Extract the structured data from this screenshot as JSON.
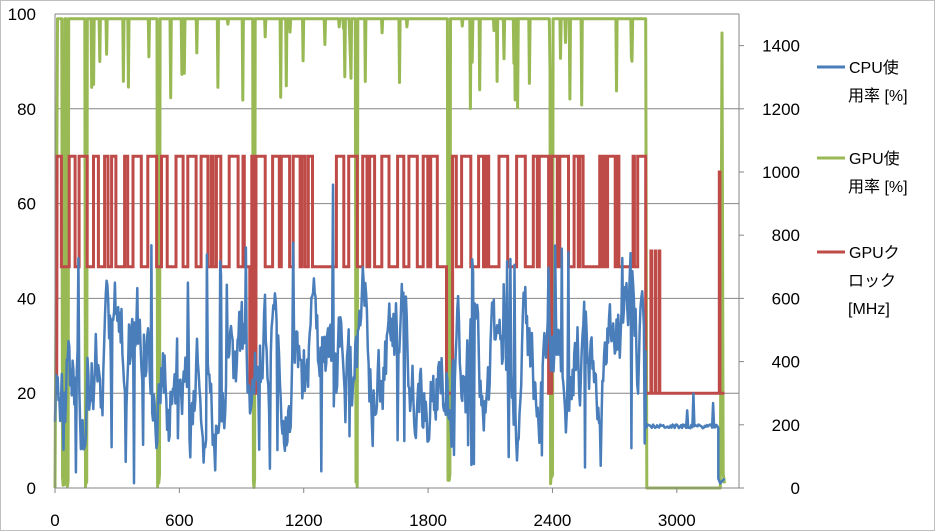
{
  "chart_data": {
    "type": "line",
    "x_ticks": [
      0,
      600,
      1200,
      1800,
      2400,
      3000
    ],
    "xlim": [
      0,
      3300
    ],
    "y_left_ticks": [
      0,
      20,
      40,
      60,
      80,
      100
    ],
    "ylim_left": [
      0,
      100
    ],
    "y_right_ticks": [
      0,
      200,
      400,
      600,
      800,
      1000,
      1200,
      1400
    ],
    "ylim_right": [
      0,
      1500
    ],
    "grid": "horizontal",
    "legend_position": "right",
    "series": [
      {
        "name": "CPU使用率 [%]",
        "legend_lines": [
          "CPU使",
          "用率 [%]"
        ],
        "axis": "left",
        "color": "#4a7ebb",
        "phases": [
          {
            "x_start": 0,
            "x_end": 2850,
            "typical_min": 12,
            "typical_max": 38,
            "peak": 64,
            "dip": 1
          },
          {
            "x_start": 2850,
            "x_end": 3200,
            "level": 13,
            "peak": 20
          },
          {
            "x_start": 3200,
            "x_end": 3230,
            "level": 1
          }
        ]
      },
      {
        "name": "GPU使用率 [%]",
        "legend_lines": [
          "GPU使",
          "用率 [%]"
        ],
        "axis": "left",
        "color": "#98b954",
        "phases": [
          {
            "x_start": 0,
            "x_end": 2850,
            "level": 99,
            "dips_to": 0
          },
          {
            "x_start": 2850,
            "x_end": 3210,
            "level": 0
          },
          {
            "x_start": 3210,
            "x_end": 3230,
            "peak": 96
          }
        ]
      },
      {
        "name": "GPUクロック [MHz]",
        "legend_lines": [
          "GPUク",
          "ロック",
          "[MHz]"
        ],
        "axis": "right",
        "color": "#be4b48",
        "phases": [
          {
            "x_start": 0,
            "x_end": 2850,
            "levels": [
              1050,
              700
            ],
            "min": 300
          },
          {
            "x_start": 2850,
            "x_end": 3230,
            "level": 300,
            "peaks": [
              750,
              1000
            ]
          }
        ]
      }
    ]
  }
}
